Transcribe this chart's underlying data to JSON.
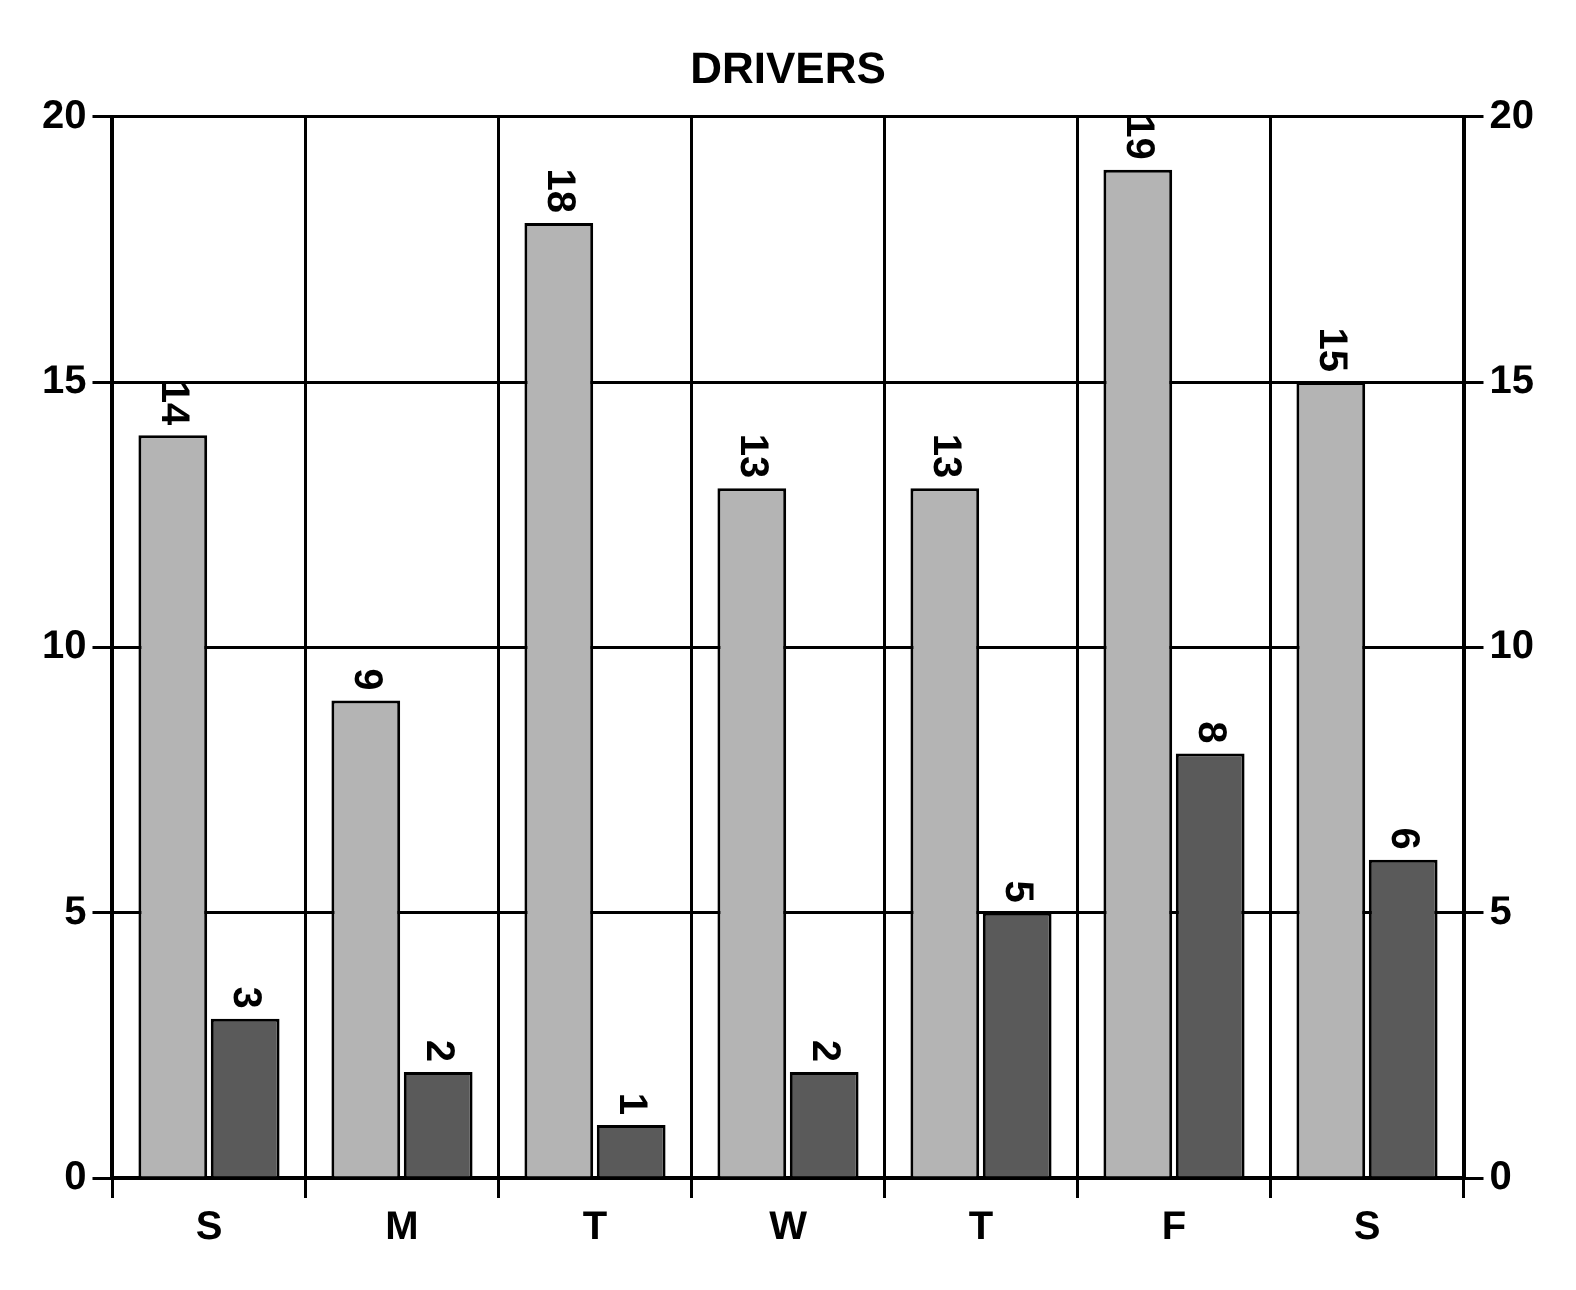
{
  "chart_data": {
    "type": "bar",
    "title": "DRIVERS",
    "categories": [
      "S",
      "M",
      "T",
      "W",
      "T",
      "F",
      "S"
    ],
    "series": [
      {
        "color": "#b4b4b4",
        "values": [
          14,
          9,
          18,
          13,
          13,
          19,
          15
        ]
      },
      {
        "color": "#5a5a5a",
        "values": [
          3,
          2,
          1,
          2,
          5,
          8,
          6
        ]
      }
    ],
    "ylim": [
      0,
      20
    ],
    "yticks": [
      0,
      5,
      10,
      15,
      20
    ],
    "y2lim": [
      0,
      20
    ],
    "y2ticks": [
      0,
      5,
      10,
      15,
      20
    ],
    "grid": true,
    "legend": false,
    "data_labels": true
  }
}
